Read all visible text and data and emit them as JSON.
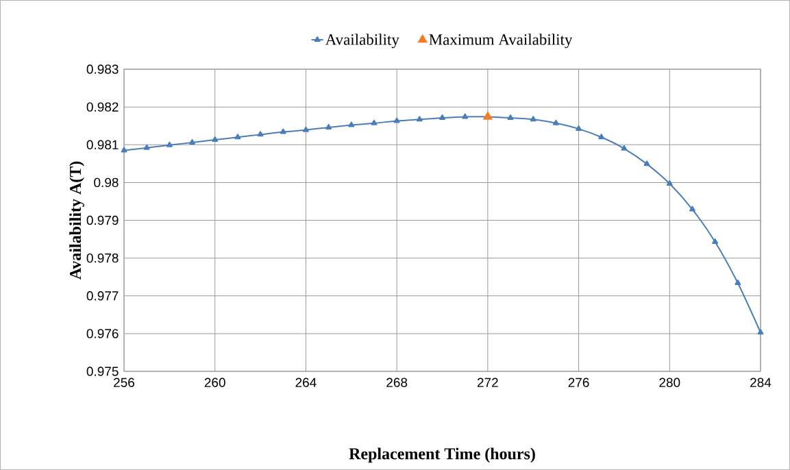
{
  "chart_data": {
    "type": "line",
    "xlabel": "Replacement Time (hours)",
    "ylabel": "Availability  A(T)",
    "xlim": [
      256,
      284
    ],
    "xticks": [
      256,
      260,
      264,
      268,
      272,
      276,
      280,
      284
    ],
    "ylim": [
      0.975,
      0.983
    ],
    "yticks": [
      0.975,
      0.976,
      0.977,
      0.978,
      0.979,
      0.98,
      0.981,
      0.982,
      0.983
    ],
    "grid": true,
    "legend": "top",
    "series": [
      {
        "name": "Availability",
        "marker": "triangle",
        "color": "#4a7ebb",
        "x": [
          256,
          257,
          258,
          259,
          260,
          261,
          262,
          263,
          264,
          265,
          266,
          267,
          268,
          269,
          270,
          271,
          272,
          273,
          274,
          275,
          276,
          277,
          278,
          279,
          280,
          281,
          282,
          283,
          284
        ],
        "values": [
          0.98085,
          0.98092,
          0.98099,
          0.98106,
          0.98113,
          0.9812,
          0.98127,
          0.98134,
          0.98139,
          0.98146,
          0.98152,
          0.98157,
          0.98163,
          0.98167,
          0.98171,
          0.98174,
          0.98174,
          0.98171,
          0.98167,
          0.98157,
          0.98142,
          0.9812,
          0.9809,
          0.98049,
          0.97997,
          0.97929,
          0.97843,
          0.97734,
          0.97603
        ]
      },
      {
        "name": "Maximum Availability",
        "type": "scatter",
        "marker": "triangle",
        "color": "#f47c20",
        "x": [
          272
        ],
        "values": [
          0.98174
        ]
      }
    ]
  }
}
